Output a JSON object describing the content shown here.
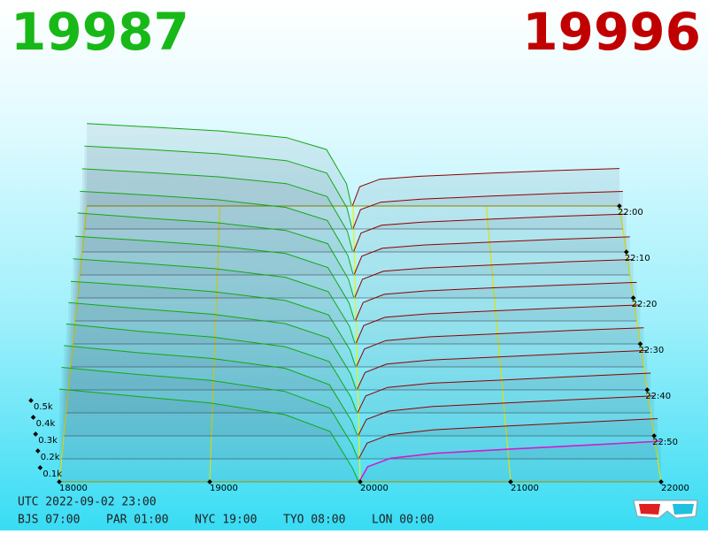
{
  "chart_data": {
    "type": "depth3d",
    "best_bid": 19987,
    "best_ask": 19996,
    "xticks": [
      18000,
      19000,
      20000,
      21000,
      22000
    ],
    "ylim": [
      0,
      500
    ],
    "yticks": [
      {
        "value": 100,
        "label": "0.1k"
      },
      {
        "value": 200,
        "label": "0.2k"
      },
      {
        "value": 300,
        "label": "0.3k"
      },
      {
        "value": 400,
        "label": "0.4k"
      },
      {
        "value": 500,
        "label": "0.5k"
      }
    ],
    "time_ticks": [
      "22:00",
      "22:10",
      "22:20",
      "22:30",
      "22:40",
      "22:50"
    ],
    "times": [
      "22:00",
      "22:05",
      "22:10",
      "22:15",
      "22:20",
      "22:25",
      "22:30",
      "22:35",
      "22:40",
      "22:45",
      "22:50",
      "22:55",
      "23:00"
    ],
    "grid_color": "#f0f000",
    "bids": {
      "color": "#12a812",
      "prices": [
        18000,
        18500,
        19000,
        19500,
        19800,
        19950,
        19987
      ],
      "amounts": [
        [
          555,
          530,
          505,
          460,
          380,
          150,
          6
        ],
        [
          552,
          528,
          500,
          455,
          372,
          140,
          5
        ],
        [
          548,
          522,
          495,
          450,
          365,
          135,
          6
        ],
        [
          545,
          520,
          490,
          440,
          355,
          125,
          4
        ],
        [
          548,
          515,
          485,
          435,
          350,
          120,
          5
        ],
        [
          540,
          512,
          480,
          430,
          340,
          115,
          6
        ],
        [
          538,
          508,
          475,
          420,
          330,
          110,
          5
        ],
        [
          535,
          505,
          470,
          415,
          325,
          105,
          4
        ],
        [
          540,
          502,
          468,
          410,
          320,
          100,
          5
        ],
        [
          545,
          500,
          465,
          405,
          315,
          95,
          6
        ],
        [
          548,
          505,
          470,
          410,
          310,
          90,
          5
        ],
        [
          550,
          508,
          472,
          405,
          305,
          85,
          4
        ],
        [
          552,
          510,
          470,
          400,
          300,
          80,
          5
        ]
      ]
    },
    "asks": {
      "color": "#8e0000",
      "latest_color": "#d01cd0",
      "prices": [
        19996,
        20050,
        20200,
        20500,
        21000,
        21500,
        22000
      ],
      "amounts": [
        [
          4,
          130,
          180,
          200,
          220,
          238,
          252
        ],
        [
          5,
          128,
          178,
          198,
          218,
          236,
          250
        ],
        [
          4,
          125,
          176,
          196,
          216,
          235,
          250
        ],
        [
          6,
          122,
          174,
          195,
          215,
          233,
          248
        ],
        [
          5,
          120,
          172,
          193,
          213,
          232,
          248
        ],
        [
          4,
          118,
          170,
          192,
          212,
          230,
          246
        ],
        [
          5,
          116,
          168,
          190,
          210,
          229,
          246
        ],
        [
          6,
          112,
          165,
          188,
          208,
          228,
          245
        ],
        [
          5,
          108,
          160,
          185,
          205,
          226,
          244
        ],
        [
          4,
          104,
          156,
          182,
          202,
          224,
          244
        ],
        [
          5,
          100,
          150,
          178,
          200,
          222,
          243
        ],
        [
          4,
          95,
          145,
          175,
          198,
          220,
          242
        ],
        [
          5,
          90,
          140,
          170,
          195,
          218,
          242
        ]
      ]
    }
  },
  "footer": {
    "utc": "UTC 2022-09-02 23:00",
    "zones": [
      "BJS 07:00",
      "PAR 01:00",
      "NYC 19:00",
      "TYO 08:00",
      "LON 00:00"
    ]
  }
}
